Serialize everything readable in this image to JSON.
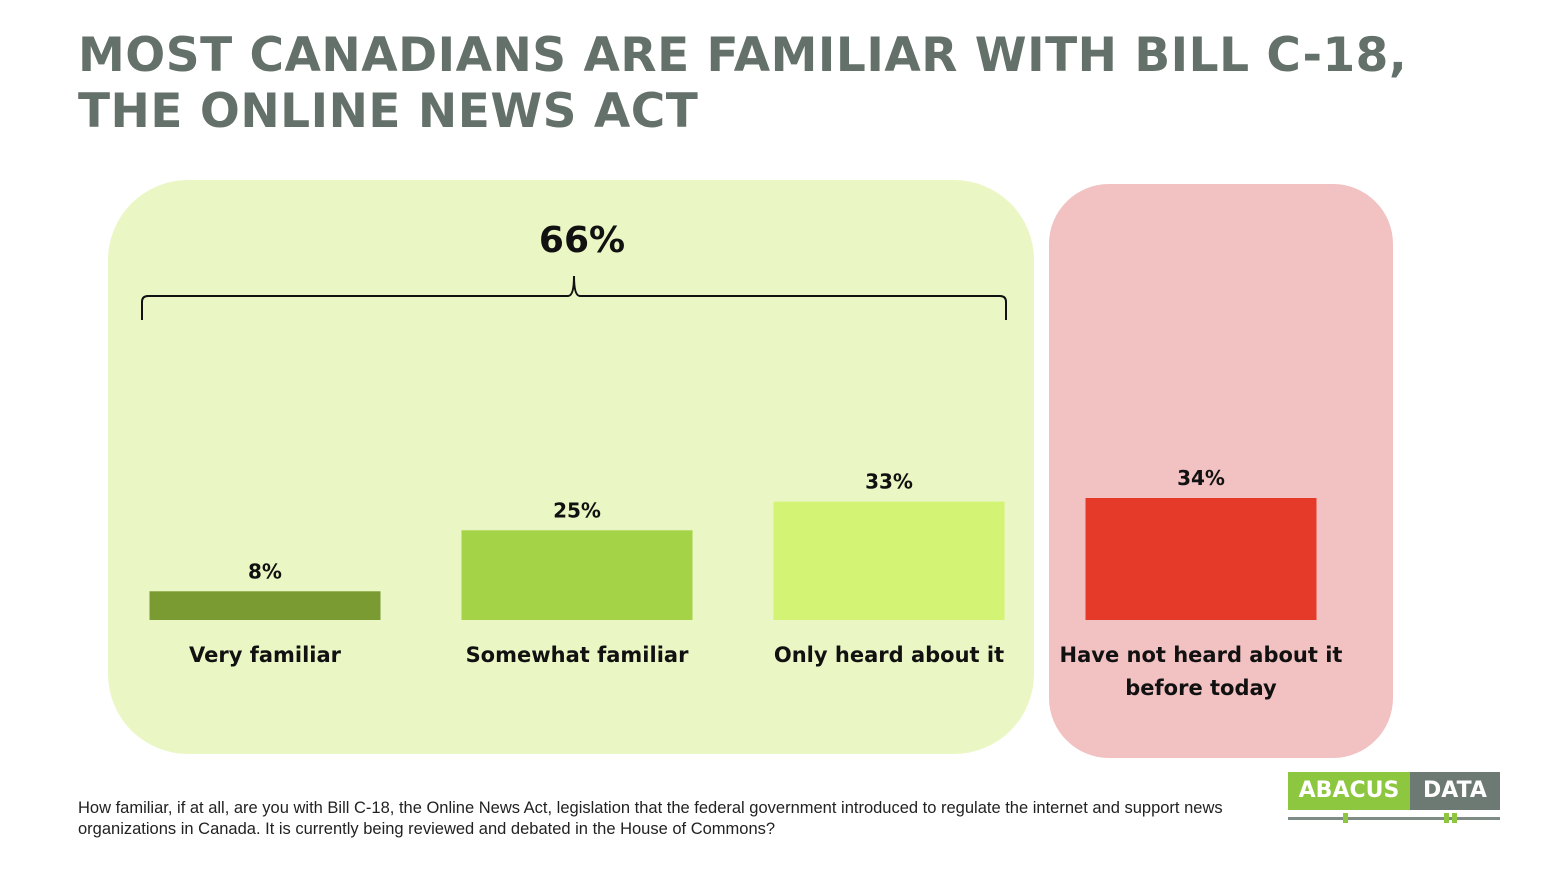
{
  "title": "MOST CANADIANS ARE FAMILIAR WITH BILL C-18, THE ONLINE NEWS ACT",
  "chart_data": {
    "type": "bar",
    "title": "MOST CANADIANS ARE FAMILIAR WITH BILL C-18, THE ONLINE NEWS ACT",
    "categories": [
      "Very familiar",
      "Somewhat familiar",
      "Only heard about it",
      "Have not heard about it before today"
    ],
    "category_lines": [
      [
        "Very familiar"
      ],
      [
        "Somewhat familiar"
      ],
      [
        "Only heard about it"
      ],
      [
        "Have not heard about it",
        "before today"
      ]
    ],
    "values": [
      8,
      25,
      33,
      34
    ],
    "value_labels": [
      "8%",
      "25%",
      "33%",
      "34%"
    ],
    "colors": [
      "#7a9a32",
      "#a5d348",
      "#d2f374",
      "#e53a2a"
    ],
    "unit": "%",
    "ylim": [
      0,
      34
    ],
    "xlabel": "",
    "ylabel": "",
    "grid": false,
    "group_bracket": {
      "label": "66%",
      "value": 66,
      "categories": [
        "Very familiar",
        "Somewhat familiar",
        "Only heard about it"
      ]
    }
  },
  "footnote": "How familiar, if at all, are you with Bill C-18,  the Online News Act, legislation that the federal government introduced to regulate the internet and support  news organizations in Canada. It is currently being reviewed and debated in the House of Commons?",
  "logo": {
    "left": "ABACUS",
    "right": "DATA"
  }
}
